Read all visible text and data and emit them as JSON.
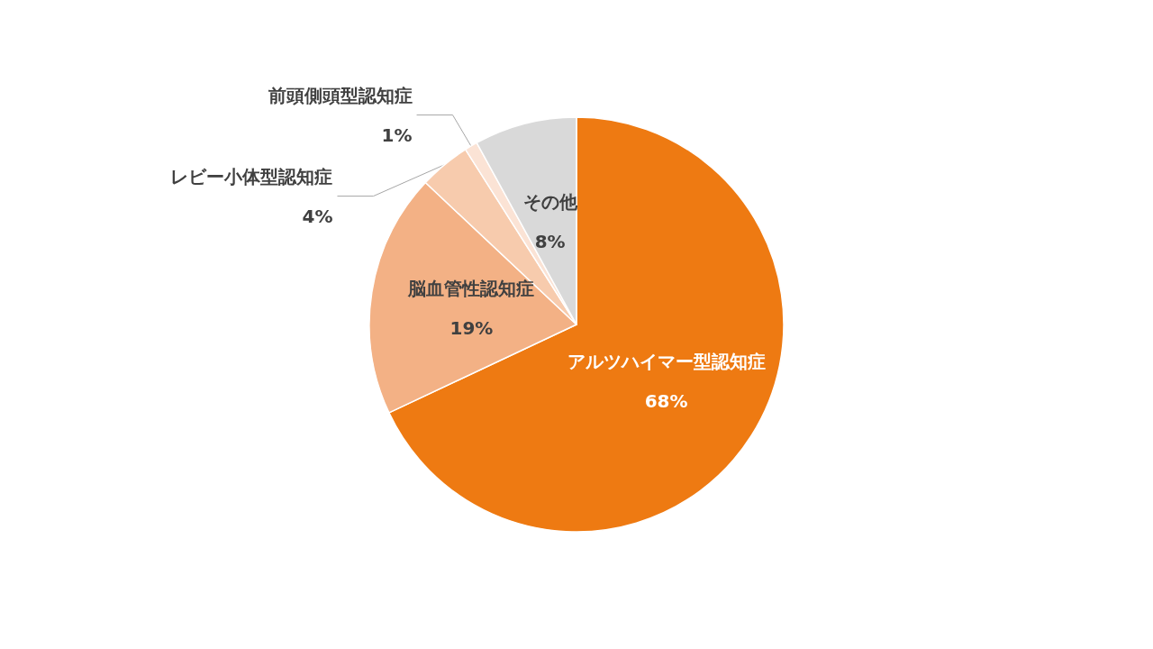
{
  "chart_data": {
    "type": "pie",
    "categories": [
      "アルツハイマー型認知症",
      "脳血管性認知症",
      "レビー小体型認知症",
      "前頭側頭型認知症",
      "その他"
    ],
    "values": [
      68,
      19,
      4,
      1,
      8
    ],
    "colors": [
      "#ee7a12",
      "#f3b185",
      "#f7cbad",
      "#fbe3d5",
      "#d9d9d9"
    ],
    "value_labels": [
      "68%",
      "19%",
      "4%",
      "1%",
      "8%"
    ],
    "legend": false
  }
}
